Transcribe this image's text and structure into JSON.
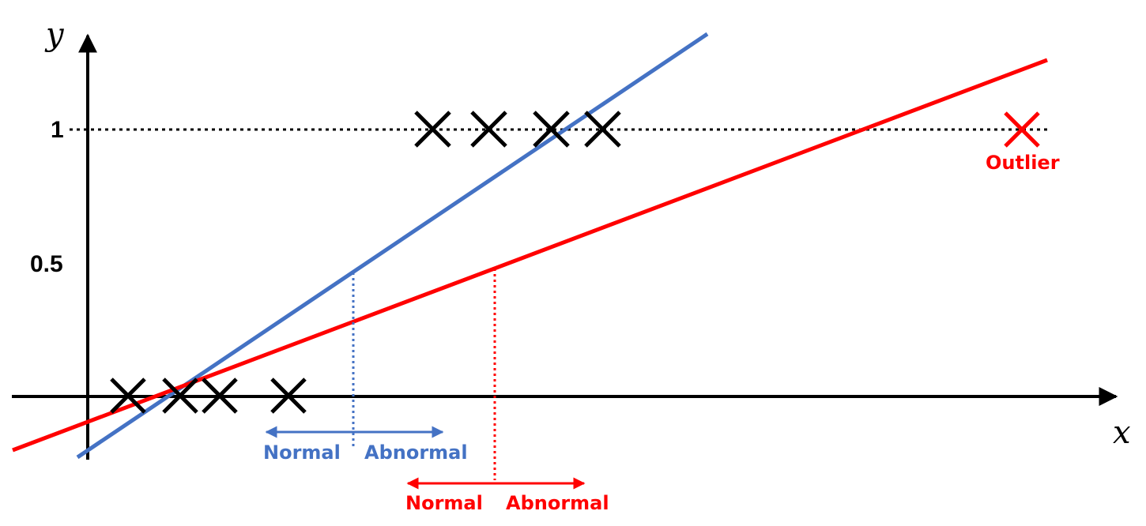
{
  "axes": {
    "x_label": "x",
    "y_label": "y"
  },
  "y_ticks": [
    {
      "value": 1,
      "label": "1"
    },
    {
      "value": 0.5,
      "label": "0.5"
    }
  ],
  "colors": {
    "blue": "#4472C4",
    "red": "#FF0000",
    "black": "#000000"
  },
  "samples_y0": [
    {
      "x": 0.5
    },
    {
      "x": 1.1
    },
    {
      "x": 1.6
    },
    {
      "x": 2.6
    }
  ],
  "samples_y1": [
    {
      "x": 4.4
    },
    {
      "x": 5.1
    },
    {
      "x": 5.9
    },
    {
      "x": 6.5
    }
  ],
  "outlier": {
    "x": 11.7,
    "label": "Outlier"
  },
  "fit_lines": [
    {
      "name": "blue",
      "color": "#4472C4",
      "x_at_half": 3.3,
      "normal_label": "Normal",
      "abnormal_label": "Abnormal"
    },
    {
      "name": "red",
      "color": "#FF0000",
      "x_at_half": 5.0,
      "normal_label": "Normal",
      "abnormal_label": "Abnormal"
    }
  ],
  "reference_line_y": 1
}
